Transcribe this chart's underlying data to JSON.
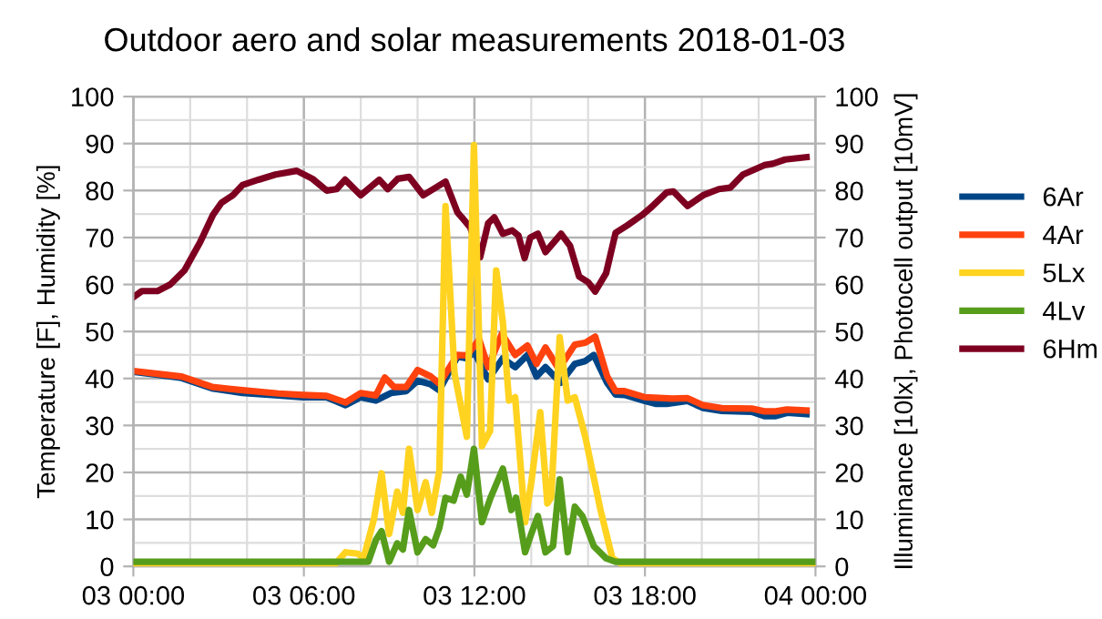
{
  "chart_data": {
    "type": "line",
    "title": "Outdoor aero and solar measurements 2018-01-03",
    "ylabel": "Temperature [F], Humidity [%]",
    "y2label": "Illuminance [10lx], Photocell output [10mV]",
    "xlim": [
      "2018-01-03T00:00",
      "2018-01-04T00:00"
    ],
    "xticks": [
      {
        "value": "2018-01-03T00:00",
        "label": "03 00:00"
      },
      {
        "value": "2018-01-03T06:00",
        "label": "03 06:00"
      },
      {
        "value": "2018-01-03T12:00",
        "label": "03 12:00"
      },
      {
        "value": "2018-01-03T18:00",
        "label": "03 18:00"
      },
      {
        "value": "2018-01-04T00:00",
        "label": "04 00:00"
      }
    ],
    "ylim": [
      0,
      100
    ],
    "yticks": [
      0,
      10,
      20,
      30,
      40,
      50,
      60,
      70,
      80,
      90,
      100
    ],
    "y2lim": [
      0,
      100
    ],
    "y2ticks": [
      0,
      10,
      20,
      30,
      40,
      50,
      60,
      70,
      80,
      90,
      100
    ],
    "grid": true,
    "legend": "right",
    "marker": "none",
    "line_style": "solid",
    "series": [
      {
        "name": "6Ar",
        "color": "#004586",
        "x": [
          "2018-01-03T00:00",
          "2018-01-03T00:51",
          "2018-01-03T01:42",
          "2018-01-03T02:46",
          "2018-01-03T03:50",
          "2018-01-03T05:06",
          "2018-01-03T05:58",
          "2018-01-03T06:48",
          "2018-01-03T07:28",
          "2018-01-03T08:00",
          "2018-01-03T08:32",
          "2018-01-03T09:04",
          "2018-01-03T09:36",
          "2018-01-03T10:00",
          "2018-01-03T10:27",
          "2018-01-03T10:46",
          "2018-01-03T11:24",
          "2018-01-03T11:44",
          "2018-01-03T12:00",
          "2018-01-03T12:29",
          "2018-01-03T13:00",
          "2018-01-03T13:26",
          "2018-01-03T13:52",
          "2018-01-03T14:11",
          "2018-01-03T14:30",
          "2018-01-03T15:02",
          "2018-01-03T15:32",
          "2018-01-03T15:54",
          "2018-01-03T16:12",
          "2018-01-03T16:40",
          "2018-01-03T16:58",
          "2018-01-03T17:17",
          "2018-01-03T18:00",
          "2018-01-03T18:24",
          "2018-01-03T18:46",
          "2018-01-03T19:30",
          "2018-01-03T20:03",
          "2018-01-03T20:42",
          "2018-01-03T21:45",
          "2018-01-03T22:12",
          "2018-01-03T22:36",
          "2018-01-03T23:00",
          "2018-01-03T23:41"
        ],
        "values": [
          41.4,
          40.8,
          40.1,
          37.9,
          36.9,
          36.4,
          36,
          36,
          34.3,
          36,
          35.3,
          36.9,
          37.3,
          39.5,
          38.8,
          37.5,
          44.6,
          44.3,
          45.6,
          39.8,
          44.3,
          42.4,
          45,
          40.4,
          42.4,
          39.1,
          43.1,
          43.7,
          45,
          39.1,
          36.6,
          36.5,
          35.2,
          34.6,
          34.6,
          35.2,
          33.7,
          33.1,
          32.9,
          32,
          32,
          32.7,
          32.4
        ]
      },
      {
        "name": "4Ar",
        "color": "#ff420e",
        "x": [
          "2018-01-03T00:00",
          "2018-01-03T00:51",
          "2018-01-03T01:42",
          "2018-01-03T02:46",
          "2018-01-03T03:50",
          "2018-01-03T05:06",
          "2018-01-03T05:58",
          "2018-01-03T06:48",
          "2018-01-03T07:28",
          "2018-01-03T08:00",
          "2018-01-03T08:32",
          "2018-01-03T08:51",
          "2018-01-03T09:10",
          "2018-01-03T09:36",
          "2018-01-03T10:00",
          "2018-01-03T10:27",
          "2018-01-03T10:46",
          "2018-01-03T11:24",
          "2018-01-03T11:44",
          "2018-01-03T12:10",
          "2018-01-03T12:29",
          "2018-01-03T12:58",
          "2018-01-03T13:26",
          "2018-01-03T13:52",
          "2018-01-03T14:11",
          "2018-01-03T14:30",
          "2018-01-03T14:58",
          "2018-01-03T15:32",
          "2018-01-03T15:54",
          "2018-01-03T16:15",
          "2018-01-03T16:40",
          "2018-01-03T16:58",
          "2018-01-03T17:17",
          "2018-01-03T18:00",
          "2018-01-03T18:58",
          "2018-01-03T19:30",
          "2018-01-03T20:03",
          "2018-01-03T20:42",
          "2018-01-03T21:45",
          "2018-01-03T22:12",
          "2018-01-03T22:36",
          "2018-01-03T23:00",
          "2018-01-03T23:41"
        ],
        "values": [
          41.6,
          41,
          40.4,
          38.2,
          37.5,
          36.8,
          36.5,
          36.3,
          34.9,
          36.9,
          36.4,
          40.2,
          38.2,
          38.2,
          41.8,
          40.5,
          38.9,
          45,
          44.9,
          48.3,
          42.4,
          49.5,
          45,
          47,
          43.1,
          46.6,
          42,
          47.2,
          47.6,
          48.9,
          40.5,
          37.3,
          37.3,
          36,
          35.7,
          35.8,
          34.3,
          33.7,
          33.6,
          33,
          33,
          33.4,
          33.2
        ]
      },
      {
        "name": "5Lx",
        "color": "#ffd320",
        "axis": "y2",
        "x": [
          "2018-01-03T00:00",
          "2018-01-03T07:02",
          "2018-01-03T07:28",
          "2018-01-03T07:54",
          "2018-01-03T08:06",
          "2018-01-03T08:28",
          "2018-01-03T08:44",
          "2018-01-03T09:00",
          "2018-01-03T09:17",
          "2018-01-03T09:29",
          "2018-01-03T09:42",
          "2018-01-03T10:00",
          "2018-01-03T10:17",
          "2018-01-03T10:30",
          "2018-01-03T10:46",
          "2018-01-03T10:59",
          "2018-01-03T11:18",
          "2018-01-03T11:44",
          "2018-01-03T11:59",
          "2018-01-03T12:16",
          "2018-01-03T12:33",
          "2018-01-03T12:46",
          "2018-01-03T13:00",
          "2018-01-03T13:13",
          "2018-01-03T13:26",
          "2018-01-03T13:47",
          "2018-01-03T14:00",
          "2018-01-03T14:19",
          "2018-01-03T14:34",
          "2018-01-03T14:42",
          "2018-01-03T15:00",
          "2018-01-03T15:17",
          "2018-01-03T15:32",
          "2018-01-03T15:54",
          "2018-01-03T16:26",
          "2018-01-03T16:51",
          "2018-01-03T17:18",
          "2018-01-04T00:00"
        ],
        "values": [
          0,
          0,
          3,
          2.7,
          1.7,
          10.1,
          19.8,
          6.9,
          15.9,
          11.4,
          25,
          12,
          17.9,
          11.4,
          20.4,
          76.7,
          41.1,
          27.6,
          89.7,
          25.6,
          28.8,
          63,
          52,
          35.3,
          36,
          9.4,
          17.8,
          32.8,
          13.4,
          14.6,
          48.8,
          35.3,
          36,
          27.6,
          12.1,
          1.8,
          0,
          0
        ]
      },
      {
        "name": "4Lv",
        "color": "#579d1c",
        "axis": "y2",
        "x": [
          "2018-01-03T00:00",
          "2018-01-03T08:16",
          "2018-01-03T08:32",
          "2018-01-03T08:44",
          "2018-01-03T09:00",
          "2018-01-03T09:17",
          "2018-01-03T09:29",
          "2018-01-03T09:42",
          "2018-01-03T10:00",
          "2018-01-03T10:17",
          "2018-01-03T10:33",
          "2018-01-03T10:46",
          "2018-01-03T10:59",
          "2018-01-03T11:16",
          "2018-01-03T11:31",
          "2018-01-03T11:44",
          "2018-01-03T11:59",
          "2018-01-03T12:16",
          "2018-01-03T12:34",
          "2018-01-03T13:00",
          "2018-01-03T13:18",
          "2018-01-03T13:28",
          "2018-01-03T13:47",
          "2018-01-03T14:00",
          "2018-01-03T14:14",
          "2018-01-03T14:30",
          "2018-01-03T14:46",
          "2018-01-03T15:00",
          "2018-01-03T15:17",
          "2018-01-03T15:32",
          "2018-01-03T15:48",
          "2018-01-03T16:12",
          "2018-01-03T16:38",
          "2018-01-03T16:58",
          "2018-01-04T00:00"
        ],
        "values": [
          1,
          1,
          5.6,
          7.5,
          1,
          4.9,
          3.6,
          12,
          3,
          5.8,
          4.5,
          8.2,
          14.6,
          14,
          19.1,
          15.3,
          25,
          9.4,
          14.6,
          20.8,
          12,
          14.6,
          3,
          6.9,
          10.7,
          3,
          4.3,
          18.5,
          3,
          12.7,
          10.7,
          4.3,
          1.7,
          1,
          1
        ]
      },
      {
        "name": "6Hm",
        "color": "#7e0021",
        "x": [
          "2018-01-03T00:00",
          "2018-01-03T00:18",
          "2018-01-03T00:51",
          "2018-01-03T01:18",
          "2018-01-03T01:48",
          "2018-01-03T02:21",
          "2018-01-03T02:48",
          "2018-01-03T03:06",
          "2018-01-03T03:30",
          "2018-01-03T03:51",
          "2018-01-03T04:24",
          "2018-01-03T05:00",
          "2018-01-03T05:45",
          "2018-01-03T06:18",
          "2018-01-03T06:48",
          "2018-01-03T07:09",
          "2018-01-03T07:27",
          "2018-01-03T08:00",
          "2018-01-03T08:39",
          "2018-01-03T08:57",
          "2018-01-03T09:18",
          "2018-01-03T09:42",
          "2018-01-03T10:12",
          "2018-01-03T10:59",
          "2018-01-03T11:24",
          "2018-01-03T11:51",
          "2018-01-03T12:12",
          "2018-01-03T12:29",
          "2018-01-03T12:42",
          "2018-01-03T13:00",
          "2018-01-03T13:20",
          "2018-01-03T13:33",
          "2018-01-03T13:46",
          "2018-01-03T13:58",
          "2018-01-03T14:14",
          "2018-01-03T14:30",
          "2018-01-03T15:03",
          "2018-01-03T15:22",
          "2018-01-03T15:41",
          "2018-01-03T16:00",
          "2018-01-03T16:15",
          "2018-01-03T16:38",
          "2018-01-03T16:58",
          "2018-01-03T17:23",
          "2018-01-03T17:54",
          "2018-01-03T18:14",
          "2018-01-03T18:46",
          "2018-01-03T19:00",
          "2018-01-03T19:30",
          "2018-01-03T20:03",
          "2018-01-03T20:36",
          "2018-01-03T21:00",
          "2018-01-03T21:27",
          "2018-01-03T22:12",
          "2018-01-03T22:30",
          "2018-01-03T22:56",
          "2018-01-03T23:41"
        ],
        "values": [
          57.3,
          58.6,
          58.6,
          60,
          63,
          69,
          74.8,
          77.4,
          79,
          81.2,
          82.3,
          83.4,
          84.2,
          82.5,
          80,
          80.3,
          82.3,
          79,
          82.3,
          80.3,
          82.5,
          82.9,
          79,
          81.9,
          75.4,
          72.2,
          65.8,
          73,
          74.3,
          70.8,
          71.5,
          70.4,
          65.6,
          70,
          70.8,
          66.9,
          70.8,
          68.2,
          61.7,
          60.5,
          58.5,
          62.4,
          71,
          72.6,
          74.8,
          76.5,
          79.6,
          79.8,
          76.7,
          79,
          80.3,
          80.6,
          83.4,
          85.4,
          85.7,
          86.6,
          87.1
        ]
      }
    ]
  }
}
